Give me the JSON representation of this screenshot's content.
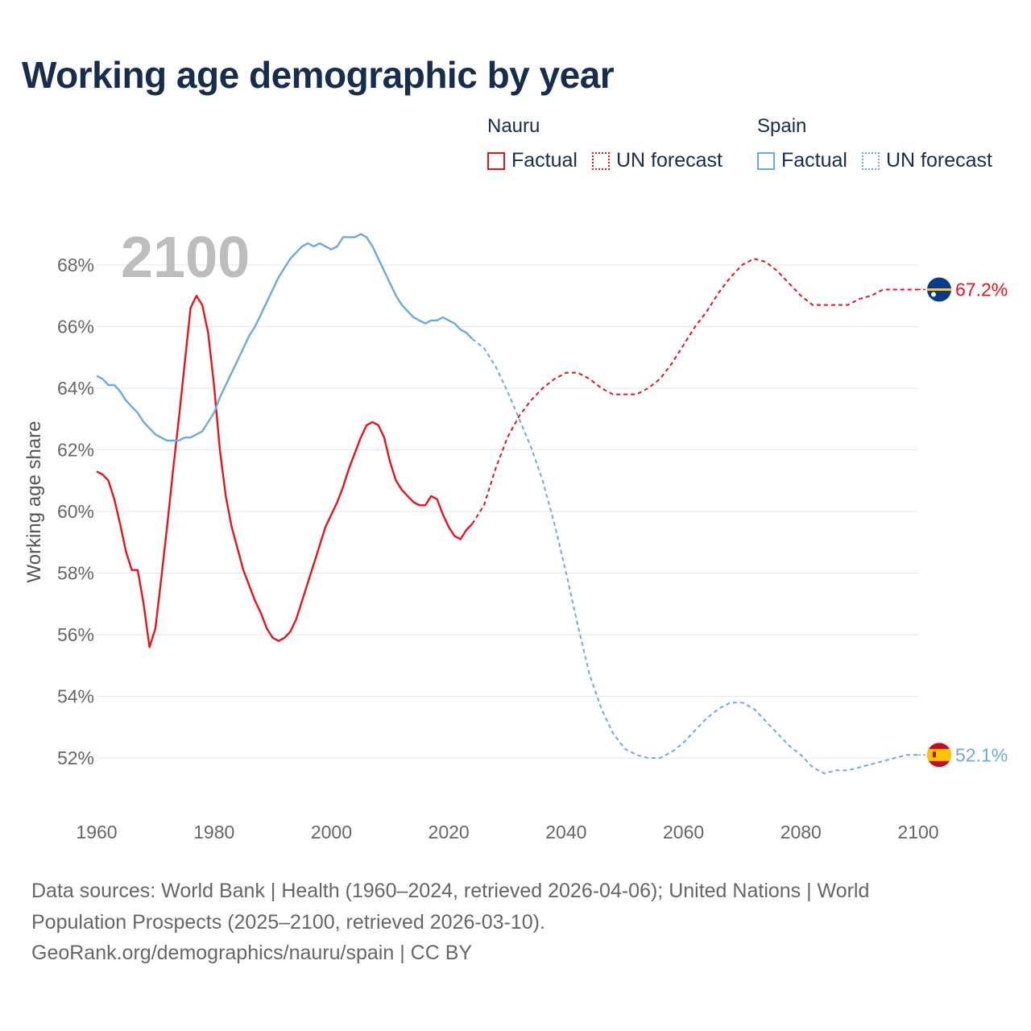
{
  "title": "Working age demographic by year",
  "legend": {
    "groups": [
      {
        "name": "Nauru",
        "factual_label": "Factual",
        "forecast_label": "UN forecast",
        "color": "#e8141a"
      },
      {
        "name": "Spain",
        "factual_label": "Factual",
        "forecast_label": "UN forecast",
        "color": "#6aa9e4"
      }
    ]
  },
  "year_watermark": "2100",
  "sources": {
    "line1": "Data sources: World Bank | Health (1960–2024, retrieved 2026-04-06); United Nations | World",
    "line2": "Population Prospects (2025–2100, retrieved 2026-03-10).",
    "line3": "GeoRank.org/demographics/nauru/spain | CC BY"
  },
  "chart_data": {
    "type": "line",
    "title": "Working age demographic by year",
    "xlabel": "",
    "ylabel": "Working age share",
    "xlim": [
      1960,
      2100
    ],
    "ylim": [
      50.2,
      69.8
    ],
    "x_ticks": [
      1960,
      1980,
      2000,
      2020,
      2040,
      2060,
      2080,
      2100
    ],
    "x_tick_labels": [
      "1960",
      "1980",
      "2000",
      "2020",
      "2040",
      "2060",
      "2080",
      "2100"
    ],
    "y_ticks": [
      52,
      54,
      56,
      58,
      60,
      62,
      64,
      66,
      68
    ],
    "y_tick_labels": [
      "52%",
      "54%",
      "56%",
      "58%",
      "60%",
      "62%",
      "64%",
      "66%",
      "68%"
    ],
    "grid": true,
    "series": [
      {
        "name": "Nauru",
        "color": "#e8141a",
        "end_label": "67.2%",
        "flag": "nauru",
        "factual": {
          "x": [
            1960,
            1961,
            1962,
            1963,
            1964,
            1965,
            1966,
            1967,
            1968,
            1969,
            1970,
            1971,
            1972,
            1973,
            1974,
            1975,
            1976,
            1977,
            1978,
            1979,
            1980,
            1981,
            1982,
            1983,
            1984,
            1985,
            1986,
            1987,
            1988,
            1989,
            1990,
            1991,
            1992,
            1993,
            1994,
            1995,
            1996,
            1997,
            1998,
            1999,
            2000,
            2001,
            2002,
            2003,
            2004,
            2005,
            2006,
            2007,
            2008,
            2009,
            2010,
            2011,
            2012,
            2013,
            2014,
            2015,
            2016,
            2017,
            2018,
            2019,
            2020,
            2021,
            2022,
            2023,
            2024
          ],
          "y": [
            61.3,
            61.2,
            61.0,
            60.4,
            59.6,
            58.7,
            58.1,
            58.1,
            57.0,
            55.6,
            56.2,
            57.8,
            59.5,
            61.3,
            63.0,
            64.8,
            66.6,
            67.0,
            66.7,
            65.8,
            64.1,
            62.0,
            60.5,
            59.5,
            58.8,
            58.1,
            57.6,
            57.1,
            56.7,
            56.2,
            55.9,
            55.8,
            55.9,
            56.1,
            56.5,
            57.1,
            57.7,
            58.3,
            58.9,
            59.5,
            59.9,
            60.3,
            60.8,
            61.4,
            61.9,
            62.4,
            62.8,
            62.9,
            62.8,
            62.4,
            61.6,
            61.0,
            60.7,
            60.5,
            60.3,
            60.2,
            60.2,
            60.5,
            60.4,
            59.9,
            59.5,
            59.2,
            59.1,
            59.4,
            59.6
          ]
        },
        "forecast": {
          "x": [
            2024,
            2026,
            2028,
            2030,
            2032,
            2034,
            2036,
            2038,
            2040,
            2042,
            2044,
            2046,
            2048,
            2050,
            2052,
            2054,
            2056,
            2058,
            2060,
            2062,
            2064,
            2066,
            2068,
            2070,
            2072,
            2074,
            2076,
            2078,
            2080,
            2082,
            2084,
            2086,
            2088,
            2090,
            2092,
            2094,
            2096,
            2098,
            2100
          ],
          "y": [
            59.6,
            60.2,
            61.4,
            62.4,
            63.1,
            63.6,
            64.0,
            64.3,
            64.5,
            64.5,
            64.3,
            64.0,
            63.8,
            63.8,
            63.8,
            64.0,
            64.3,
            64.8,
            65.4,
            66.0,
            66.5,
            67.1,
            67.6,
            68.0,
            68.2,
            68.1,
            67.8,
            67.4,
            67.0,
            66.7,
            66.7,
            66.7,
            66.7,
            66.9,
            67.0,
            67.2,
            67.2,
            67.2,
            67.2
          ]
        }
      },
      {
        "name": "Spain",
        "color": "#6aa9e4",
        "end_label": "52.1%",
        "flag": "spain",
        "factual": {
          "x": [
            1960,
            1961,
            1962,
            1963,
            1964,
            1965,
            1966,
            1967,
            1968,
            1969,
            1970,
            1971,
            1972,
            1973,
            1974,
            1975,
            1976,
            1977,
            1978,
            1979,
            1980,
            1981,
            1982,
            1983,
            1984,
            1985,
            1986,
            1987,
            1988,
            1989,
            1990,
            1991,
            1992,
            1993,
            1994,
            1995,
            1996,
            1997,
            1998,
            1999,
            2000,
            2001,
            2002,
            2003,
            2004,
            2005,
            2006,
            2007,
            2008,
            2009,
            2010,
            2011,
            2012,
            2013,
            2014,
            2015,
            2016,
            2017,
            2018,
            2019,
            2020,
            2021,
            2022,
            2023,
            2024
          ],
          "y": [
            64.4,
            64.3,
            64.1,
            64.1,
            63.9,
            63.6,
            63.4,
            63.2,
            62.9,
            62.7,
            62.5,
            62.4,
            62.3,
            62.3,
            62.3,
            62.4,
            62.4,
            62.5,
            62.6,
            62.9,
            63.2,
            63.7,
            64.1,
            64.5,
            64.9,
            65.3,
            65.7,
            66.0,
            66.4,
            66.8,
            67.2,
            67.6,
            67.9,
            68.2,
            68.4,
            68.6,
            68.7,
            68.6,
            68.7,
            68.6,
            68.5,
            68.6,
            68.9,
            68.9,
            68.9,
            69.0,
            68.9,
            68.6,
            68.2,
            67.8,
            67.4,
            67.0,
            66.7,
            66.5,
            66.3,
            66.2,
            66.1,
            66.2,
            66.2,
            66.3,
            66.2,
            66.1,
            65.9,
            65.8,
            65.6
          ]
        },
        "forecast": {
          "x": [
            2024,
            2026,
            2028,
            2030,
            2032,
            2034,
            2036,
            2038,
            2040,
            2042,
            2044,
            2046,
            2048,
            2050,
            2052,
            2054,
            2056,
            2058,
            2060,
            2062,
            2064,
            2066,
            2068,
            2070,
            2072,
            2074,
            2076,
            2078,
            2080,
            2082,
            2084,
            2086,
            2088,
            2090,
            2092,
            2094,
            2096,
            2098,
            2100
          ],
          "y": [
            65.6,
            65.3,
            64.7,
            63.9,
            63.0,
            62.1,
            61.0,
            59.6,
            58.0,
            56.3,
            54.7,
            53.6,
            52.8,
            52.3,
            52.1,
            52.0,
            52.0,
            52.2,
            52.5,
            52.9,
            53.3,
            53.6,
            53.8,
            53.8,
            53.6,
            53.2,
            52.8,
            52.4,
            52.1,
            51.7,
            51.5,
            51.6,
            51.6,
            51.7,
            51.8,
            51.9,
            52.0,
            52.1,
            52.1
          ]
        }
      }
    ]
  }
}
